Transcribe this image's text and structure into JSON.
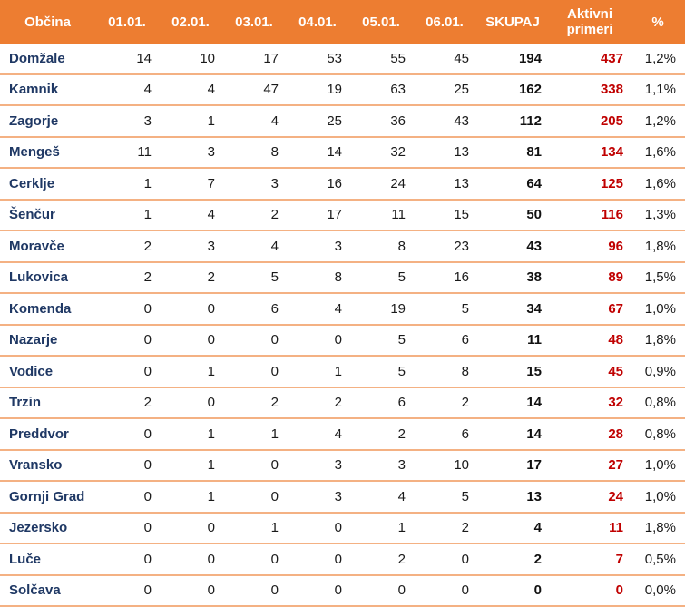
{
  "table": {
    "columns": [
      "Občina",
      "01.01.",
      "02.01.",
      "03.01.",
      "04.01.",
      "05.01.",
      "06.01.",
      "SKUPAJ",
      "Aktivni primeri",
      "%"
    ],
    "rows": [
      {
        "name": "Domžale",
        "d1": "14",
        "d2": "10",
        "d3": "17",
        "d4": "53",
        "d5": "55",
        "d6": "45",
        "total": "194",
        "active": "437",
        "pct": "1,2%"
      },
      {
        "name": "Kamnik",
        "d1": "4",
        "d2": "4",
        "d3": "47",
        "d4": "19",
        "d5": "63",
        "d6": "25",
        "total": "162",
        "active": "338",
        "pct": "1,1%"
      },
      {
        "name": "Zagorje",
        "d1": "3",
        "d2": "1",
        "d3": "4",
        "d4": "25",
        "d5": "36",
        "d6": "43",
        "total": "112",
        "active": "205",
        "pct": "1,2%"
      },
      {
        "name": "Mengeš",
        "d1": "11",
        "d2": "3",
        "d3": "8",
        "d4": "14",
        "d5": "32",
        "d6": "13",
        "total": "81",
        "active": "134",
        "pct": "1,6%"
      },
      {
        "name": "Cerklje",
        "d1": "1",
        "d2": "7",
        "d3": "3",
        "d4": "16",
        "d5": "24",
        "d6": "13",
        "total": "64",
        "active": "125",
        "pct": "1,6%"
      },
      {
        "name": "Šenčur",
        "d1": "1",
        "d2": "4",
        "d3": "2",
        "d4": "17",
        "d5": "11",
        "d6": "15",
        "total": "50",
        "active": "116",
        "pct": "1,3%"
      },
      {
        "name": "Moravče",
        "d1": "2",
        "d2": "3",
        "d3": "4",
        "d4": "3",
        "d5": "8",
        "d6": "23",
        "total": "43",
        "active": "96",
        "pct": "1,8%"
      },
      {
        "name": "Lukovica",
        "d1": "2",
        "d2": "2",
        "d3": "5",
        "d4": "8",
        "d5": "5",
        "d6": "16",
        "total": "38",
        "active": "89",
        "pct": "1,5%"
      },
      {
        "name": "Komenda",
        "d1": "0",
        "d2": "0",
        "d3": "6",
        "d4": "4",
        "d5": "19",
        "d6": "5",
        "total": "34",
        "active": "67",
        "pct": "1,0%"
      },
      {
        "name": "Nazarje",
        "d1": "0",
        "d2": "0",
        "d3": "0",
        "d4": "0",
        "d5": "5",
        "d6": "6",
        "total": "11",
        "active": "48",
        "pct": "1,8%"
      },
      {
        "name": "Vodice",
        "d1": "0",
        "d2": "1",
        "d3": "0",
        "d4": "1",
        "d5": "5",
        "d6": "8",
        "total": "15",
        "active": "45",
        "pct": "0,9%"
      },
      {
        "name": "Trzin",
        "d1": "2",
        "d2": "0",
        "d3": "2",
        "d4": "2",
        "d5": "6",
        "d6": "2",
        "total": "14",
        "active": "32",
        "pct": "0,8%"
      },
      {
        "name": "Preddvor",
        "d1": "0",
        "d2": "1",
        "d3": "1",
        "d4": "4",
        "d5": "2",
        "d6": "6",
        "total": "14",
        "active": "28",
        "pct": "0,8%"
      },
      {
        "name": "Vransko",
        "d1": "0",
        "d2": "1",
        "d3": "0",
        "d4": "3",
        "d5": "3",
        "d6": "10",
        "total": "17",
        "active": "27",
        "pct": "1,0%"
      },
      {
        "name": "Gornji Grad",
        "d1": "0",
        "d2": "1",
        "d3": "0",
        "d4": "3",
        "d5": "4",
        "d6": "5",
        "total": "13",
        "active": "24",
        "pct": "1,0%"
      },
      {
        "name": "Jezersko",
        "d1": "0",
        "d2": "0",
        "d3": "1",
        "d4": "0",
        "d5": "1",
        "d6": "2",
        "total": "4",
        "active": "11",
        "pct": "1,8%"
      },
      {
        "name": "Luče",
        "d1": "0",
        "d2": "0",
        "d3": "0",
        "d4": "0",
        "d5": "2",
        "d6": "0",
        "total": "2",
        "active": "7",
        "pct": "0,5%"
      },
      {
        "name": "Solčava",
        "d1": "0",
        "d2": "0",
        "d3": "0",
        "d4": "0",
        "d5": "0",
        "d6": "0",
        "total": "0",
        "active": "0",
        "pct": "0,0%"
      }
    ]
  }
}
